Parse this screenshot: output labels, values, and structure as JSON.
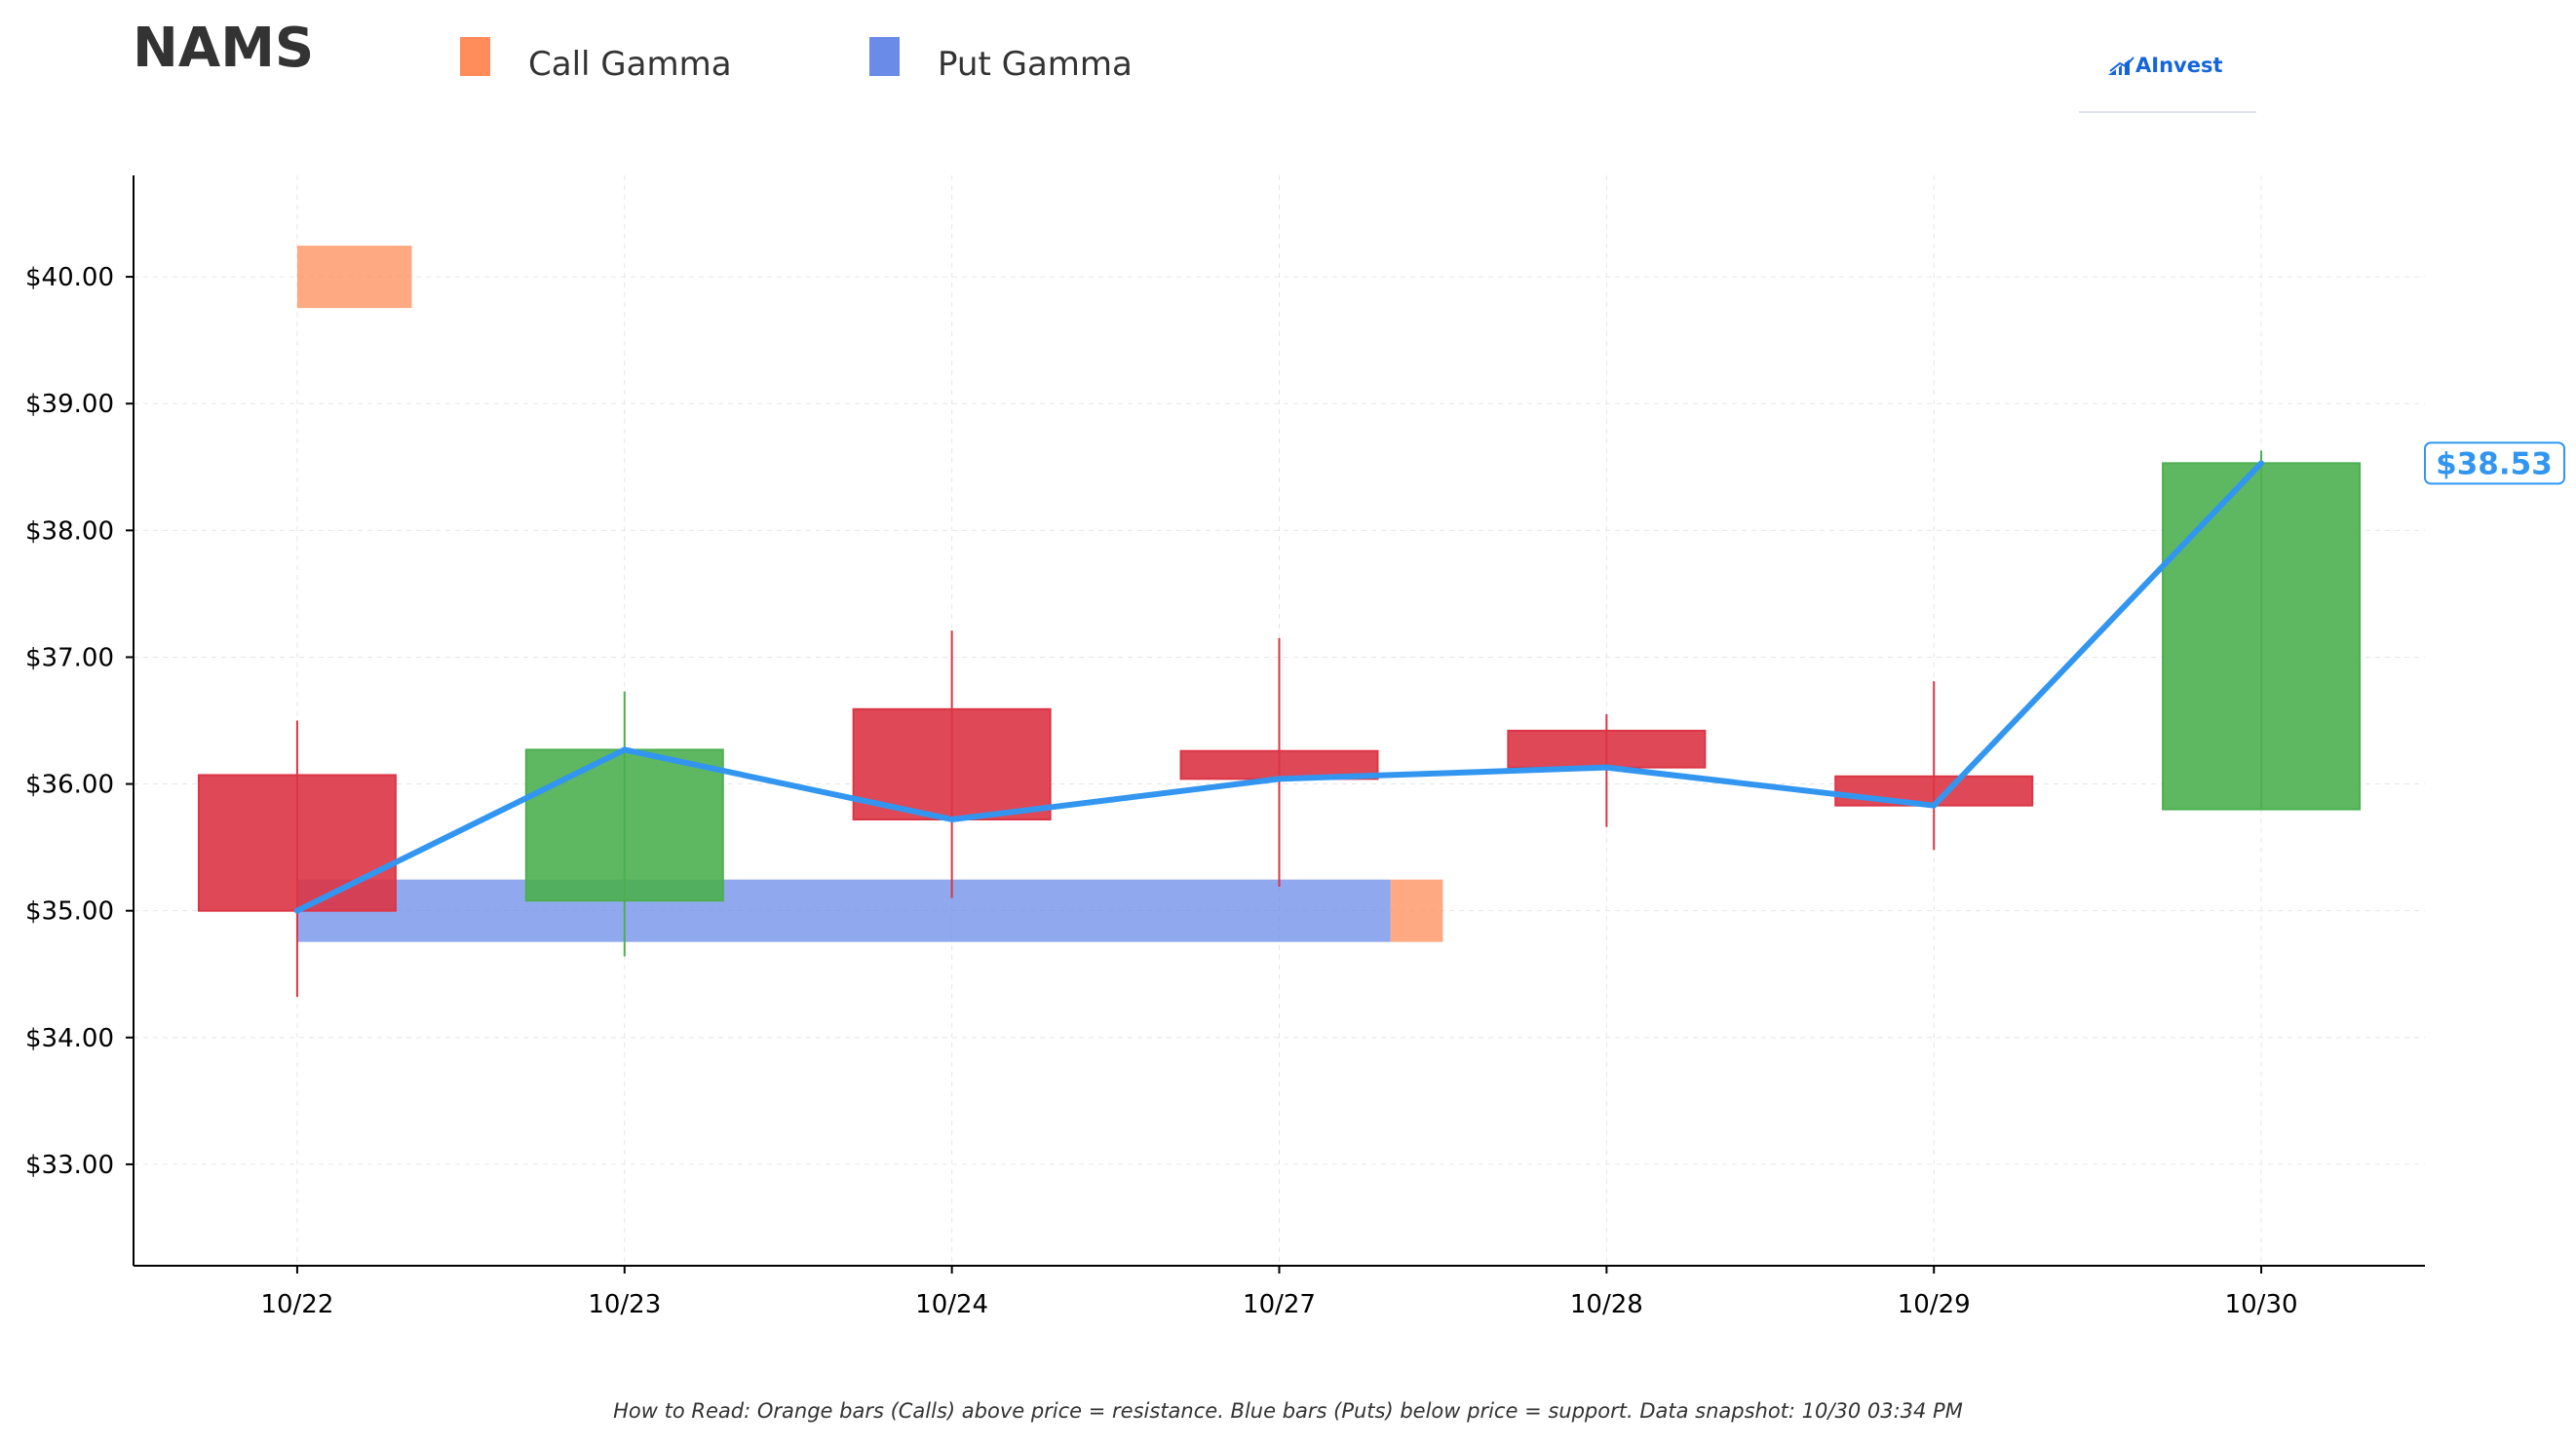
{
  "header": {
    "ticker": "NAMS",
    "legend": [
      {
        "label": "Call Gamma",
        "color": "#ff8c5a"
      },
      {
        "label": "Put Gamma",
        "color": "#6b8be8"
      }
    ],
    "logo_text": "AInvest"
  },
  "footnote": "How to Read: Orange bars (Calls) above price = resistance. Blue bars (Puts) below price = support. Data snapshot: 10/30 03:34 PM",
  "colors": {
    "up": "#4caf50",
    "down": "#dc3545",
    "price_line": "#3296f0",
    "call": "#ff8c5a",
    "put": "#6b8be8"
  },
  "chart_data": {
    "type": "candlestick",
    "categories": [
      "10/22",
      "10/23",
      "10/24",
      "10/27",
      "10/28",
      "10/29",
      "10/30"
    ],
    "ohlc": [
      {
        "open": 36.07,
        "high": 36.5,
        "low": 34.32,
        "close": 35.0
      },
      {
        "open": 35.08,
        "high": 36.73,
        "low": 34.64,
        "close": 36.27
      },
      {
        "open": 36.59,
        "high": 37.21,
        "low": 35.1,
        "close": 35.72
      },
      {
        "open": 36.26,
        "high": 37.15,
        "low": 35.19,
        "close": 36.04
      },
      {
        "open": 36.42,
        "high": 36.55,
        "low": 35.66,
        "close": 36.13
      },
      {
        "open": 36.06,
        "high": 36.81,
        "low": 35.48,
        "close": 35.83
      },
      {
        "open": 35.8,
        "high": 38.63,
        "low": 35.8,
        "close": 38.53
      }
    ],
    "price_line": [
      35.0,
      36.27,
      35.72,
      36.04,
      36.13,
      35.83,
      38.53
    ],
    "last_price_label": "$38.53",
    "gamma_levels": [
      {
        "type": "call",
        "strike": 40.0,
        "x_start": 0.0,
        "x_end": 0.35
      },
      {
        "type": "put",
        "strike": 35.0,
        "x_start": 0.0,
        "x_end": 3.34
      },
      {
        "type": "call",
        "strike": 35.0,
        "x_start": 3.34,
        "x_end": 3.5
      }
    ],
    "yticks": [
      "$33.00",
      "$34.00",
      "$35.00",
      "$36.00",
      "$37.00",
      "$38.00",
      "$39.00",
      "$40.00"
    ],
    "ytick_values": [
      33,
      34,
      35,
      36,
      37,
      38,
      39,
      40
    ],
    "ylim": [
      32.2,
      40.8
    ],
    "xlim": [
      -0.5,
      6.5
    ],
    "grid": true,
    "legend_position": "top"
  }
}
